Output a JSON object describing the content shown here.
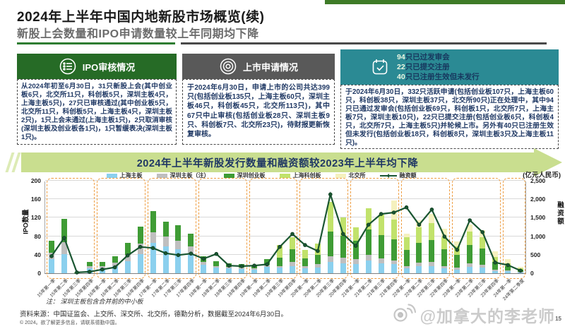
{
  "header": {
    "title": "2024年上半年中国内地新股市场概览(续)",
    "subtitle": "新股上会数量和IPO申请数量较上年同期均下降"
  },
  "panels": {
    "ipo_review": {
      "title": "IPO审核情况",
      "icon": "list-icon",
      "body": "从2024年初至6月30日，31只新股上会(其中创业板6只，北交所11只，科创板5只，深圳主板4只，上海主板5只)，27只已审核通过(其中创业板5只，北交所11只，科创板5只，上海主板4只，深圳主板2只)，1只上会未通过(上海主板1只)，2只取消审核(深圳主板及创业板各1只)，1只暂缓表决(深圳主板1只)。"
    },
    "listing_application": {
      "title": "上市申请情况",
      "icon": "target-icon",
      "body": "于2024年6月30日，申请上市的公司共达399只(包括创业板135只，上海主板60只，深圳主板46只，科创板45只，北交所113只)，其中67只中止审核(包括创业板28只、深圳主板9只、科创板7只、北交所23只)，待财报更新恢复审核。"
    },
    "pipeline": {
      "icon": "check-clipboard-icon",
      "lines": [
        {
          "num": "94",
          "text": "只已过发审会"
        },
        {
          "num": "22",
          "text": "只已提交注册"
        },
        {
          "num": "40",
          "text": "只已注册生效但未发行"
        }
      ],
      "body": "于2024年6月30日，332只活跃申请(包括创业板107只，上海主板60只，科创板38只，深圳主板37只，北交所90只)正在处理中，其中94只已通过发审会(包括创业板69只，科创板1只，北交所7只，上海主板7只，深圳主板10只)，22只已提交注册(包括创业板6只，科创板4只，北交所7只，上海主板5只)并轮候上市。另外有40只已注册生效但未发行(包括创业板18只，科创板8只，深圳主板3只及上海主板11只)。"
    }
  },
  "banner": {
    "text": "2024年上半年新股发行数量和融资额较2023年上半年均下降"
  },
  "chart_data": {
    "type": "bar+line",
    "title": "新股发行数量和融资额（按季度）",
    "categories": [
      "15年第一季",
      "15年第二季",
      "15年第三季",
      "15年第四季",
      "16年第一季",
      "16年第二季",
      "16年第三季",
      "16年第四季",
      "17年第一季",
      "17年第二季",
      "17年第三季",
      "17年第四季",
      "18年第一季",
      "18年第二季",
      "18年第三季",
      "18年第四季",
      "19年第一季",
      "19年第二季",
      "19年第三季",
      "19年第四季",
      "20年第一季",
      "20年第二季",
      "20年第三季",
      "20年第四季",
      "21年第一季",
      "21年第二季",
      "21年第三季",
      "21年第四季",
      "22年第一季",
      "22年第二季",
      "22年第三季",
      "22年第四季",
      "23年第一季",
      "23年第二季",
      "23年第三季",
      "23年第四季",
      "24年第一季",
      "24年第二季度"
    ],
    "series": [
      {
        "name": "上海主板",
        "color": "#8BD0EE",
        "values": [
          30,
          42,
          1,
          10,
          10,
          15,
          26,
          42,
          65,
          58,
          52,
          43,
          18,
          12,
          10,
          9,
          8,
          14,
          12,
          16,
          10,
          12,
          25,
          22,
          20,
          28,
          22,
          20,
          10,
          15,
          16,
          10,
          8,
          14,
          12,
          4,
          4,
          2
        ]
      },
      {
        "name": "深圳主板（注）",
        "color": "#BFBFBF",
        "values": [
          15,
          25,
          0,
          5,
          6,
          8,
          14,
          22,
          23,
          21,
          19,
          15,
          7,
          4,
          4,
          3,
          3,
          5,
          4,
          8,
          6,
          8,
          12,
          12,
          10,
          12,
          10,
          8,
          6,
          8,
          8,
          6,
          5,
          7,
          6,
          3,
          2,
          1
        ]
      },
      {
        "name": "深圳创业板",
        "color": "#3F9C35",
        "values": [
          25,
          50,
          1,
          10,
          8,
          14,
          25,
          37,
          46,
          33,
          33,
          27,
          12,
          10,
          8,
          8,
          6,
          12,
          17,
          28,
          16,
          20,
          53,
          47,
          40,
          55,
          50,
          46,
          35,
          42,
          48,
          36,
          26,
          40,
          36,
          18,
          10,
          5
        ]
      },
      {
        "name": "上海科创板",
        "color": "#C1E26B",
        "values": [
          0,
          0,
          0,
          0,
          0,
          0,
          0,
          0,
          0,
          0,
          0,
          0,
          0,
          0,
          0,
          0,
          0,
          0,
          28,
          26,
          19,
          24,
          65,
          40,
          30,
          45,
          44,
          42,
          27,
          35,
          36,
          26,
          19,
          29,
          24,
          10,
          6,
          2
        ]
      },
      {
        "name": "北交所",
        "color": "#F5F1BE",
        "values": [
          0,
          0,
          0,
          0,
          0,
          0,
          0,
          0,
          0,
          0,
          0,
          0,
          0,
          0,
          0,
          0,
          0,
          0,
          0,
          0,
          0,
          0,
          0,
          0,
          0,
          0,
          0,
          41,
          7,
          15,
          20,
          18,
          10,
          15,
          15,
          12,
          8,
          4
        ]
      }
    ],
    "line_series": {
      "name": "融资额",
      "color": "#1A5632",
      "values": [
        480,
        975,
        40,
        60,
        120,
        180,
        500,
        730,
        700,
        560,
        510,
        550,
        410,
        540,
        225,
        210,
        225,
        260,
        730,
        1080,
        780,
        620,
        2150,
        1080,
        760,
        1330,
        1620,
        1660,
        1800,
        1330,
        1740,
        1010,
        650,
        1450,
        1130,
        310,
        240,
        90
      ]
    },
    "left_axis": {
      "label": "IPO数量",
      "ticks": [
        0,
        40,
        80,
        120,
        160,
        200
      ],
      "max": 200
    },
    "right_axis": {
      "label": "融资额",
      "ticks": [
        0,
        500,
        1000,
        1500,
        2000,
        2500
      ],
      "tick_labels": [
        "0",
        "500",
        "1,000",
        "1,500",
        "2,000",
        "2,500"
      ],
      "max": 2500
    },
    "unit_note": "(亿元人民币)",
    "legend_position": "top",
    "grid": true,
    "year_groups": [
      [
        0,
        3
      ],
      [
        4,
        7
      ],
      [
        8,
        11
      ],
      [
        12,
        15
      ],
      [
        16,
        19
      ],
      [
        20,
        23
      ],
      [
        24,
        27
      ],
      [
        28,
        31
      ],
      [
        32,
        35
      ],
      [
        36,
        37
      ]
    ],
    "group_box_color": "#EE9C3F"
  },
  "footnotes": {
    "note": "注： 深圳主板包含合并前的中小板",
    "source": "资料来源：中国证监会、上交所、深交所、北交所，德勤分析，数据截至2024年6月30日。",
    "copyright": "© 2024。欲了解更多信息，请联系德勤中国。",
    "page_number": "15"
  },
  "watermark": {
    "icon": "weibo-icon",
    "text": "@加拿大的李老师"
  },
  "colors": {
    "accent_green": "#266B26",
    "accent_gray": "#595959",
    "accent_teal": "#2B8A94",
    "banner_green": "#C9DE8F",
    "title_rule_green": "#2E7D32",
    "body_text_navy": "#1F3864"
  }
}
